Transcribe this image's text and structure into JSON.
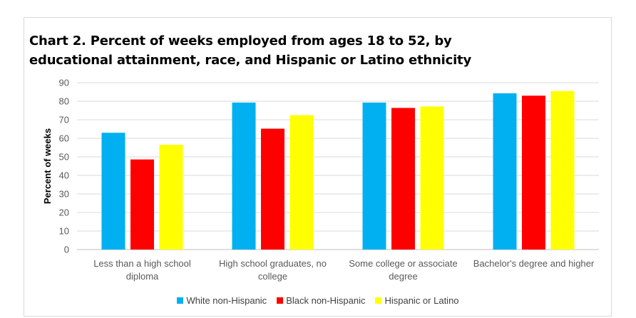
{
  "chart_data": {
    "type": "bar",
    "title": "Chart 2. Percent of weeks employed from ages 18 to 52, by educational attainment, race, and Hispanic or Latino ethnicity",
    "title_lines": [
      "Chart 2. Percent of weeks employed from ages 18 to 52, by",
      "educational attainment, race, and Hispanic or Latino ethnicity"
    ],
    "ylabel": "Percent of weeks",
    "xlabel": "",
    "ylim": [
      0,
      90
    ],
    "yticks": [
      0,
      10,
      20,
      30,
      40,
      50,
      60,
      70,
      80,
      90
    ],
    "grid": true,
    "legend_position": "bottom",
    "categories": [
      [
        "Less than a high school",
        "diploma"
      ],
      [
        "High school graduates, no",
        "college"
      ],
      [
        "Some college or associate",
        "degree"
      ],
      [
        "Bachelor's degree and higher"
      ]
    ],
    "series": [
      {
        "name": "White non-Hispanic",
        "color": "#00b0f0",
        "values": [
          63.0,
          79.3,
          79.3,
          84.3
        ]
      },
      {
        "name": "Black non-Hispanic",
        "color": "#ff0000",
        "values": [
          48.6,
          65.2,
          76.4,
          83.0
        ]
      },
      {
        "name": "Hispanic or Latino",
        "color": "#ffff00",
        "values": [
          56.5,
          72.5,
          77.2,
          85.5
        ]
      }
    ]
  }
}
